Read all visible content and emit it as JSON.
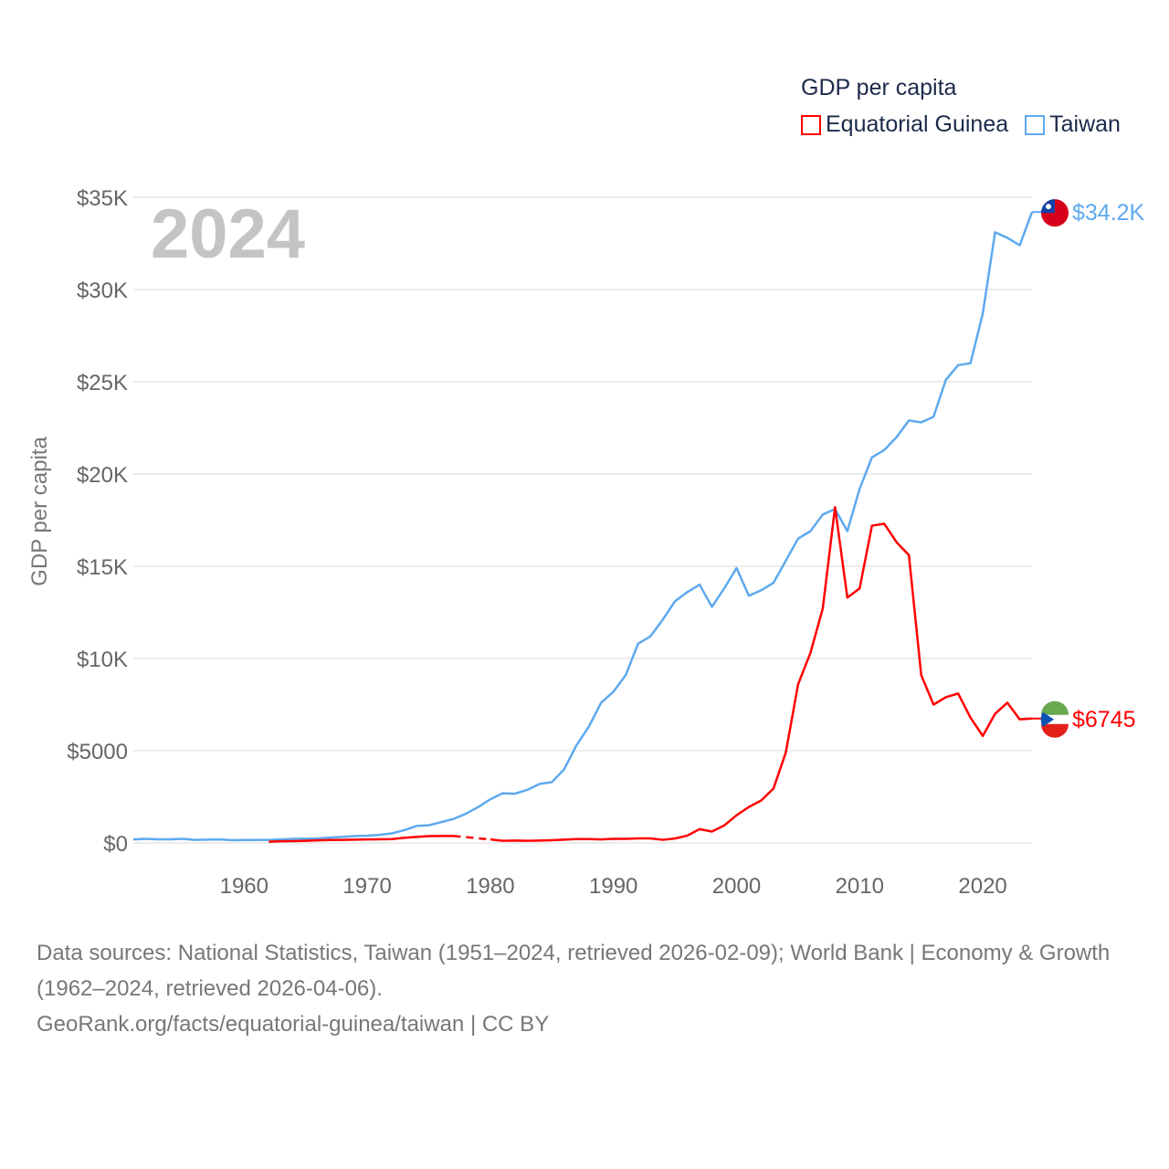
{
  "legend": {
    "title": "GDP per capita",
    "items": [
      {
        "label": "Equatorial Guinea",
        "color": "#ff0000"
      },
      {
        "label": "Taiwan",
        "color": "#5ea9ee"
      }
    ]
  },
  "year_label": "2024",
  "footer": {
    "line1": "Data sources: National Statistics, Taiwan (1951–2024, retrieved 2026-02-09); World Bank | Economy & Growth (1962–2024, retrieved 2026-04-06).",
    "line2": "GeoRank.org/facts/equatorial-guinea/taiwan | CC BY"
  },
  "chart_data": {
    "type": "line",
    "title": "GDP per capita",
    "xlabel": "",
    "ylabel": "GDP per capita",
    "xlim": [
      1951,
      2024
    ],
    "ylim": [
      0,
      35000
    ],
    "grid": true,
    "x_ticks": [
      1960,
      1970,
      1980,
      1990,
      2000,
      2010,
      2020
    ],
    "x_tick_labels": [
      "1960",
      "1970",
      "1980",
      "1990",
      "2000",
      "2010",
      "2020"
    ],
    "y_ticks": [
      0,
      5000,
      10000,
      15000,
      20000,
      25000,
      30000,
      35000
    ],
    "y_tick_labels": [
      "$0",
      "$5000",
      "$10K",
      "$15K",
      "$20K",
      "$25K",
      "$30K",
      "$35K"
    ],
    "legend_position": "top-right",
    "series": [
      {
        "name": "Taiwan",
        "color": "#5ea9ee",
        "end_label": "$34.2K",
        "start_year": 1951,
        "values": [
          190,
          220,
          200,
          200,
          220,
          170,
          180,
          190,
          150,
          160,
          160,
          170,
          190,
          220,
          230,
          250,
          290,
          330,
          370,
          390,
          440,
          520,
          690,
          920,
          960,
          1130,
          1300,
          1580,
          1940,
          2370,
          2690,
          2670,
          2880,
          3200,
          3300,
          4000,
          5300,
          6300,
          7600,
          8200,
          9100,
          10800,
          11200,
          12100,
          13100,
          13600,
          14000,
          12800,
          13800,
          14900,
          13400,
          13700,
          14100,
          15300,
          16500,
          16900,
          17800,
          18100,
          16900,
          19200,
          20900,
          21300,
          22000,
          22900,
          22800,
          23100,
          25100,
          25900,
          26000,
          28700,
          33100,
          32800,
          32400,
          34200
        ]
      },
      {
        "name": "Equatorial Guinea",
        "color": "#ff0000",
        "end_label": "$6745",
        "start_year": 1962,
        "values": [
          70,
          90,
          100,
          120,
          140,
          160,
          170,
          180,
          190,
          200,
          210,
          280,
          330,
          370,
          380,
          380,
          null,
          null,
          190,
          120,
          130,
          120,
          130,
          150,
          180,
          210,
          210,
          190,
          220,
          220,
          250,
          250,
          170,
          240,
          400,
          750,
          620,
          950,
          1500,
          1950,
          2300,
          2950,
          4900,
          8600,
          10300,
          12700,
          18200,
          13300,
          13800,
          17200,
          17300,
          16300,
          15600,
          9100,
          7500,
          7900,
          8100,
          6800,
          5800,
          7000,
          7600,
          6700,
          6745
        ]
      }
    ]
  }
}
